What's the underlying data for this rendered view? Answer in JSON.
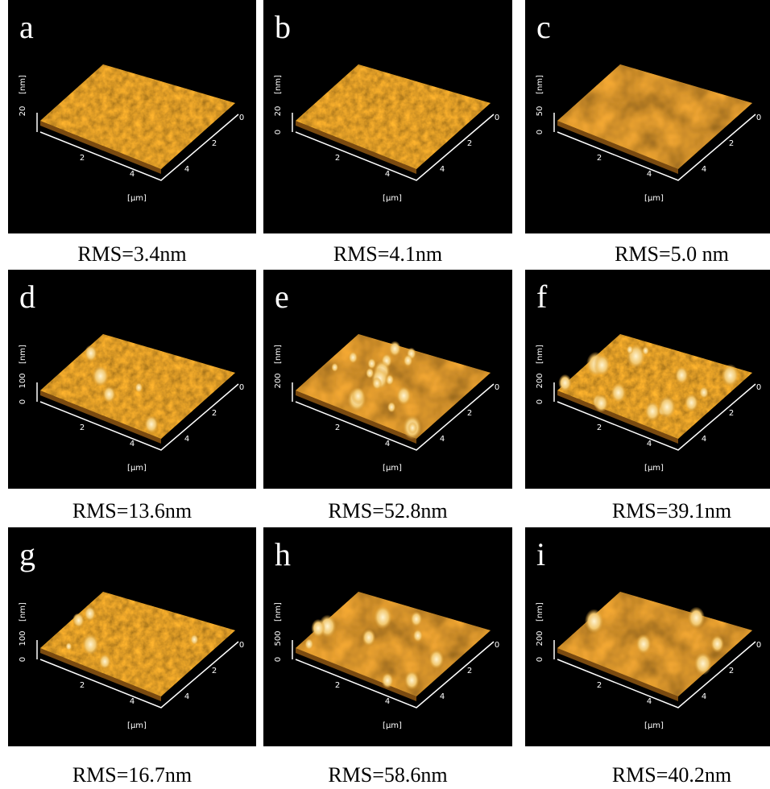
{
  "panels": [
    {
      "label": "a",
      "z_unit": "[nm]",
      "z_ticks": [
        "20"
      ],
      "x_ticks": [
        "2",
        "4"
      ],
      "y_ticks": [
        "0",
        "2",
        "4"
      ],
      "xy_unit": "[μm]",
      "caption": "RMS=3.4nm"
    },
    {
      "label": "b",
      "z_unit": "[nm]",
      "z_ticks": [
        "0",
        "20"
      ],
      "x_ticks": [
        "2",
        "4"
      ],
      "y_ticks": [
        "0",
        "2",
        "4"
      ],
      "xy_unit": "[μm]",
      "caption": "RMS=4.1nm"
    },
    {
      "label": "c",
      "z_unit": "[nm]",
      "z_ticks": [
        "0",
        "50"
      ],
      "x_ticks": [
        "2",
        "4"
      ],
      "y_ticks": [
        "0",
        "2",
        "4"
      ],
      "xy_unit": "[μm]",
      "caption": "RMS=5.0 nm"
    },
    {
      "label": "d",
      "z_unit": "[nm]",
      "z_ticks": [
        "0",
        "100"
      ],
      "x_ticks": [
        "2",
        "4"
      ],
      "y_ticks": [
        "0",
        "2",
        "4"
      ],
      "xy_unit": "[μm]",
      "caption": "RMS=13.6nm"
    },
    {
      "label": "e",
      "z_unit": "[nm]",
      "z_ticks": [
        "200"
      ],
      "x_ticks": [
        "2",
        "4"
      ],
      "y_ticks": [
        "0",
        "2",
        "4"
      ],
      "xy_unit": "[μm]",
      "caption": "RMS=52.8nm"
    },
    {
      "label": "f",
      "z_unit": "[nm]",
      "z_ticks": [
        "0",
        "200"
      ],
      "x_ticks": [
        "2",
        "4"
      ],
      "y_ticks": [
        "0",
        "2",
        "4"
      ],
      "xy_unit": "[μm]",
      "caption": "RMS=39.1nm"
    },
    {
      "label": "g",
      "z_unit": "[nm]",
      "z_ticks": [
        "0",
        "100"
      ],
      "x_ticks": [
        "2",
        "4"
      ],
      "y_ticks": [
        "0",
        "2",
        "4"
      ],
      "xy_unit": "[μm]",
      "caption": "RMS=16.7nm"
    },
    {
      "label": "h",
      "z_unit": "[nm]",
      "z_ticks": [
        "0",
        "500"
      ],
      "x_ticks": [
        "2",
        "4"
      ],
      "y_ticks": [
        "0",
        "2",
        "4"
      ],
      "xy_unit": "[μm]",
      "caption": "RMS=58.6nm"
    },
    {
      "label": "i",
      "z_unit": "[nm]",
      "z_ticks": [
        "0",
        "200"
      ],
      "x_ticks": [
        "2",
        "4"
      ],
      "y_ticks": [
        "0",
        "2",
        "4"
      ],
      "xy_unit": "[μm]",
      "caption": "RMS=40.2nm"
    }
  ]
}
